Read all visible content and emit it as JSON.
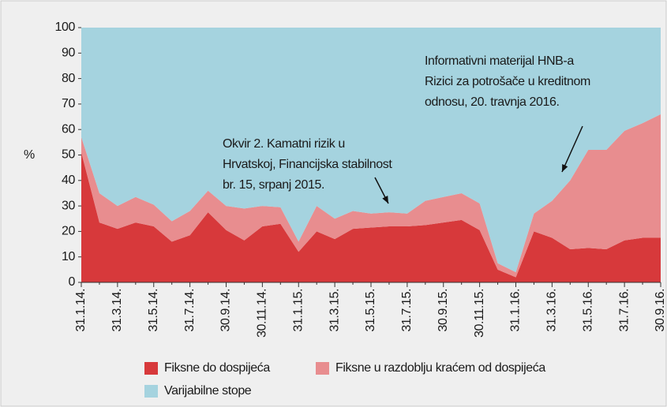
{
  "chart_data": {
    "type": "stacked_area",
    "y_label": "%",
    "ylim": [
      0,
      100
    ],
    "yticks": [
      0,
      10,
      20,
      30,
      40,
      50,
      60,
      70,
      80,
      90,
      100
    ],
    "categories": [
      "31.1.14.",
      null,
      "31.3.14.",
      null,
      "31.5.14.",
      null,
      "31.7.14.",
      null,
      "30.9.14.",
      null,
      "30.11.14.",
      null,
      "31.1.15.",
      null,
      "31.3.15.",
      null,
      "31.5.15.",
      null,
      "31.7.15.",
      null,
      "30.9.15.",
      null,
      "30.11.15.",
      null,
      "31.1.16.",
      null,
      "31.3.16.",
      null,
      "31.5.16.",
      null,
      "31.7.16.",
      null,
      "30.9.16."
    ],
    "series": [
      {
        "name": "Fiksne do dospijeća",
        "color": "#d7393b",
        "values": [
          51,
          23.5,
          21,
          23.5,
          22,
          16,
          18.5,
          27.5,
          20.5,
          16.5,
          22,
          23,
          12,
          20,
          17,
          21,
          21.5,
          22,
          22,
          22.5,
          23.5,
          24.5,
          20.5,
          5,
          2,
          20,
          17.5,
          13,
          13.5,
          13,
          16.5,
          17.5,
          17.5
        ]
      },
      {
        "name": "Fiksne u razdoblju kraćem od dospijeća",
        "color": "#e88d8f",
        "values": [
          6,
          11.5,
          9,
          10,
          8.5,
          8,
          9.5,
          8.5,
          9.5,
          12.5,
          8,
          6.5,
          4,
          10,
          8,
          7,
          5.5,
          5.5,
          5,
          9.5,
          10,
          10.5,
          10.5,
          2.5,
          2,
          7,
          14.5,
          27,
          38.5,
          39,
          43,
          45,
          48.5
        ]
      },
      {
        "name": "Varijabilne stope",
        "color": "#a5d3df",
        "values": [
          43,
          65,
          70,
          66.5,
          69.5,
          76,
          72,
          64,
          70,
          71,
          70,
          70.5,
          84,
          70,
          75,
          72,
          73,
          72.5,
          73,
          68,
          66.5,
          65,
          69,
          92.5,
          96,
          73,
          68,
          60,
          48,
          48,
          40.5,
          37.5,
          34
        ]
      }
    ],
    "annotations": [
      {
        "lines": [
          "Okvir 2. Kamatni rizik u",
          "Hrvatskoj, Financijska stabilnost",
          "br. 15, srpanj 2015."
        ]
      },
      {
        "lines": [
          "Informativni materijal HNB-a",
          "Rizici za potrošače u kreditnom",
          "odnosu, 20. travnja 2016."
        ]
      }
    ]
  }
}
